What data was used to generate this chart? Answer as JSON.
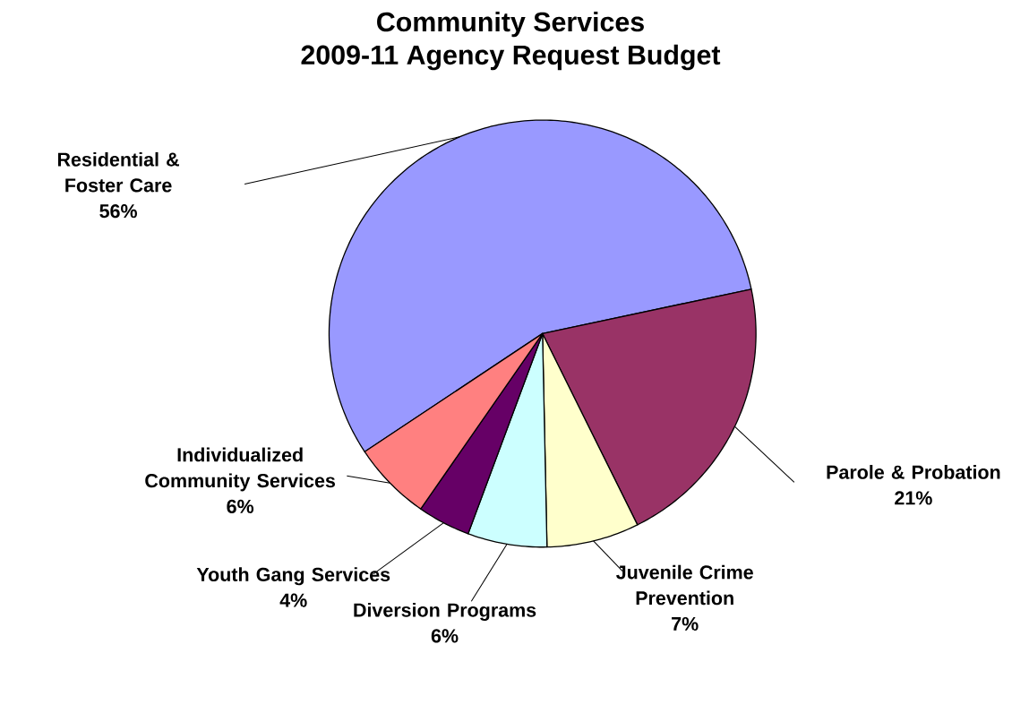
{
  "chart_data": {
    "type": "pie",
    "title": "Community Services",
    "subtitle": "2009-11 Agency Request Budget",
    "categories": [
      "Residential & Foster Care",
      "Parole & Probation",
      "Juvenile Crime Prevention",
      "Diversion Programs",
      "Youth Gang Services",
      "Individualized Community Services"
    ],
    "values": [
      56,
      21,
      7,
      6,
      4,
      6
    ],
    "value_labels": [
      "56%",
      "21%",
      "7%",
      "6%",
      "4%",
      "6%"
    ],
    "colors": [
      "#9999ff",
      "#993366",
      "#ffffcc",
      "#ccffff",
      "#660066",
      "#ff8080"
    ]
  }
}
